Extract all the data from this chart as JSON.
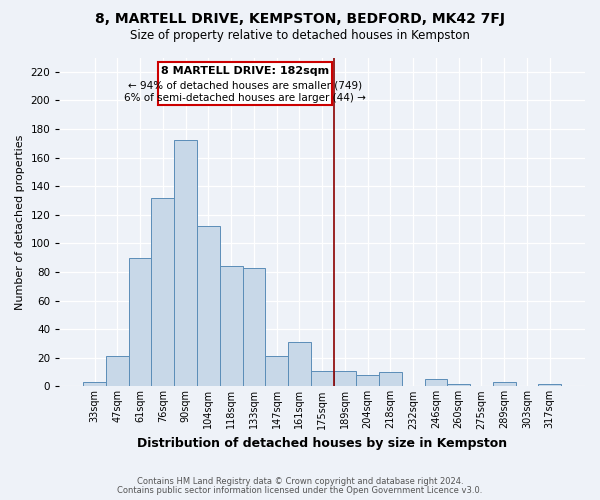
{
  "title": "8, MARTELL DRIVE, KEMPSTON, BEDFORD, MK42 7FJ",
  "subtitle": "Size of property relative to detached houses in Kempston",
  "xlabel": "Distribution of detached houses by size in Kempston",
  "ylabel": "Number of detached properties",
  "bar_labels": [
    "33sqm",
    "47sqm",
    "61sqm",
    "76sqm",
    "90sqm",
    "104sqm",
    "118sqm",
    "133sqm",
    "147sqm",
    "161sqm",
    "175sqm",
    "189sqm",
    "204sqm",
    "218sqm",
    "232sqm",
    "246sqm",
    "260sqm",
    "275sqm",
    "289sqm",
    "303sqm",
    "317sqm"
  ],
  "bar_values": [
    3,
    21,
    90,
    132,
    172,
    112,
    84,
    83,
    21,
    31,
    11,
    11,
    8,
    10,
    0,
    5,
    2,
    0,
    3,
    0,
    2
  ],
  "bar_color": "#c8d8e8",
  "bar_edge_color": "#5b8db8",
  "background_color": "#eef2f8",
  "grid_color": "#ffffff",
  "vline_x_index": 10.5,
  "vline_color": "#8b0000",
  "annotation_title": "8 MARTELL DRIVE: 182sqm",
  "annotation_line1": "← 94% of detached houses are smaller (749)",
  "annotation_line2": "6% of semi-detached houses are larger (44) →",
  "annotation_box_color": "#ffffff",
  "annotation_box_edge": "#cc0000",
  "footer_line1": "Contains HM Land Registry data © Crown copyright and database right 2024.",
  "footer_line2": "Contains public sector information licensed under the Open Government Licence v3.0.",
  "ylim": [
    0,
    230
  ],
  "yticks": [
    0,
    20,
    40,
    60,
    80,
    100,
    120,
    140,
    160,
    180,
    200,
    220
  ]
}
